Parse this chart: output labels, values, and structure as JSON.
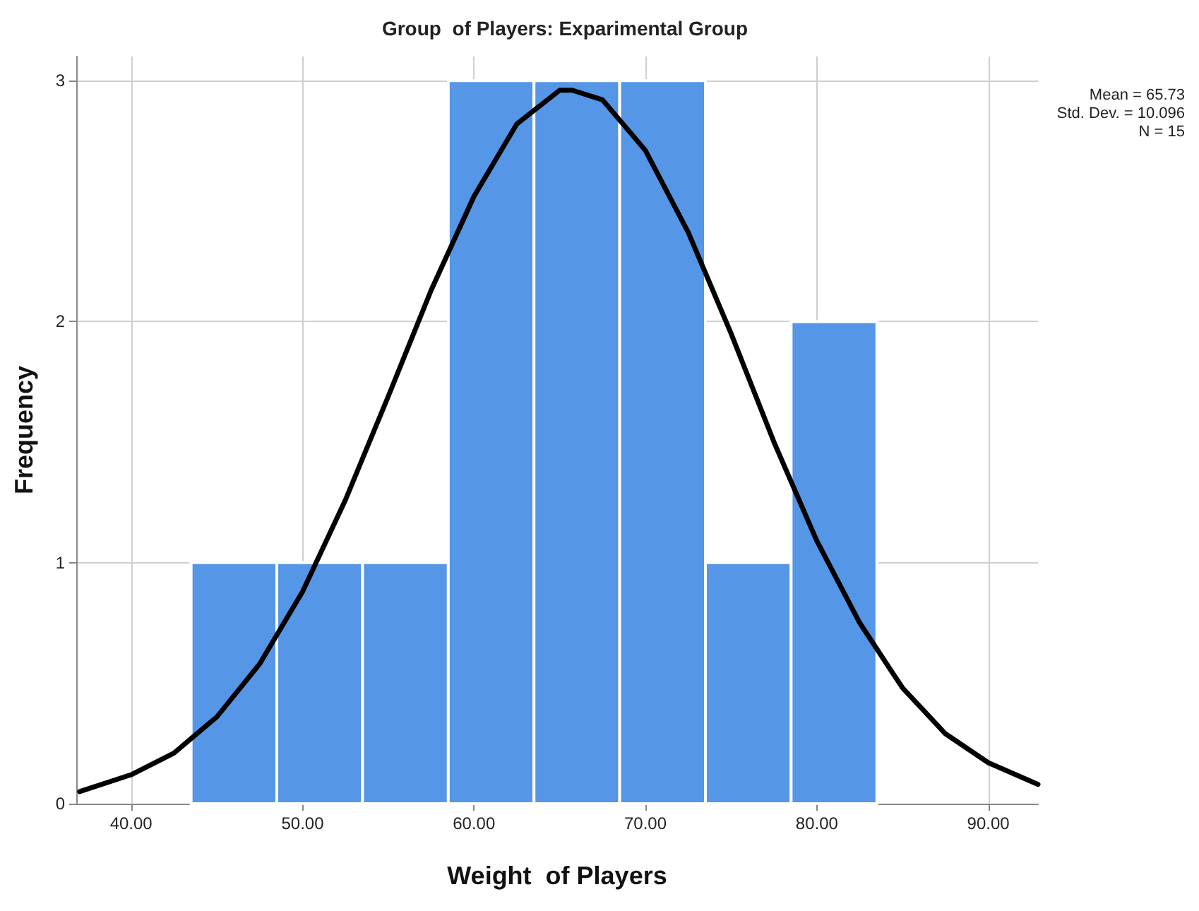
{
  "chart_data": {
    "type": "histogram",
    "title": "Group  of Players: Exparimental Group",
    "xlabel": "Weight  of Players",
    "ylabel": "Frequency",
    "bins": [
      43.5,
      48.5,
      53.5,
      58.5,
      63.5,
      68.5,
      73.5,
      78.5,
      83.5
    ],
    "values": [
      1,
      1,
      1,
      3,
      3,
      3,
      1,
      2
    ],
    "color": "#5596e6",
    "series": [
      {
        "type": "line",
        "color": "#000000",
        "x": [
          37,
          40,
          42.5,
          45,
          47.5,
          50,
          52.5,
          55,
          57.5,
          60,
          62.5,
          65,
          65.73,
          67.5,
          70,
          72.5,
          75,
          77.5,
          80,
          82.5,
          85,
          87.5,
          90,
          92.9
        ],
        "values": [
          0.05,
          0.12,
          0.21,
          0.36,
          0.58,
          0.88,
          1.26,
          1.69,
          2.13,
          2.52,
          2.82,
          2.96,
          2.96,
          2.92,
          2.71,
          2.37,
          1.95,
          1.5,
          1.09,
          0.75,
          0.48,
          0.29,
          0.17,
          0.08
        ]
      }
    ],
    "xlim": [
      36.8,
      92.9
    ],
    "ylim": [
      0,
      3.1
    ],
    "xticks": [
      {
        "value": 40,
        "label": "40.00"
      },
      {
        "value": 50,
        "label": "50.00"
      },
      {
        "value": 60,
        "label": "60.00"
      },
      {
        "value": 70,
        "label": "70.00"
      },
      {
        "value": 80,
        "label": "80.00"
      },
      {
        "value": 90,
        "label": "90.00"
      }
    ],
    "yticks": [
      0,
      1,
      2,
      3
    ],
    "grid": true,
    "line_style": "solid",
    "marker": "none",
    "annotations": [
      "Mean = 65.73",
      "Std. Dev. = 10.096",
      "N = 15"
    ]
  }
}
